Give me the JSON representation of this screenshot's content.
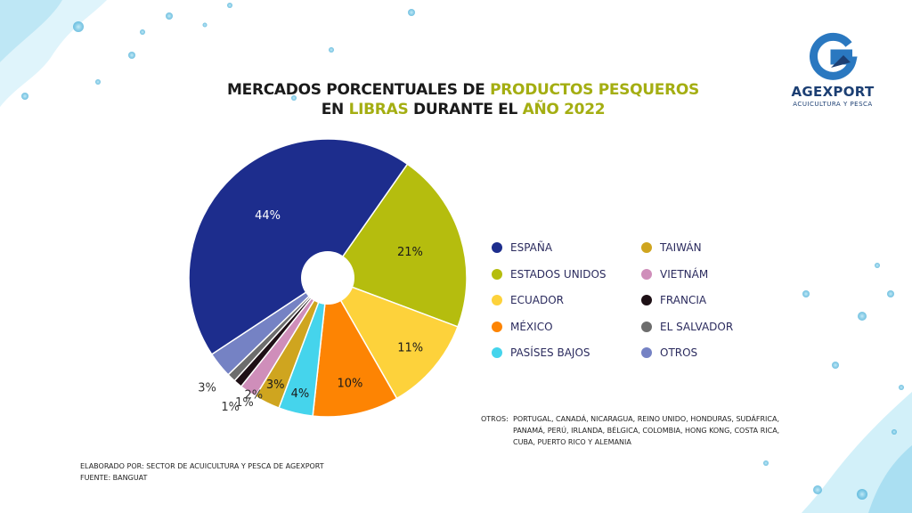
{
  "title": {
    "line1_a": "MERCADOS PORCENTUALES DE ",
    "line1_b": "PRODUCTOS PESQUEROS",
    "line2_a": "EN ",
    "line2_b": "LIBRAS",
    "line2_c": " DURANTE EL ",
    "line2_d": "AÑO 2022"
  },
  "logo": {
    "name": "AGEXPORT",
    "tagline": "ACUICULTURA Y PESCA",
    "color": "#2a78c0"
  },
  "chart_data": {
    "type": "pie",
    "title": "MERCADOS PORCENTUALES DE PRODUCTOS PESQUEROS EN LIBRAS DURANTE EL AÑO 2022",
    "donut_hole": true,
    "slices": [
      {
        "label": "ESTADOS UNIDOS",
        "value": 21,
        "display": "21%",
        "color": "#b5bd0e"
      },
      {
        "label": "ECUADOR",
        "value": 11,
        "display": "11%",
        "color": "#fdd23b"
      },
      {
        "label": "MÉXICO",
        "value": 10,
        "display": "10%",
        "color": "#fd8403"
      },
      {
        "label": "PASÍSES BAJOS",
        "value": 4,
        "display": "4%",
        "color": "#45d4ec"
      },
      {
        "label": "TAIWÁN",
        "value": 3,
        "display": "3%",
        "color": "#cfa51f"
      },
      {
        "label": "VIETNÁM",
        "value": 2,
        "display": "2%",
        "color": "#cf8eba"
      },
      {
        "label": "FRANCIA",
        "value": 1,
        "display": "1%",
        "color": "#1e1016"
      },
      {
        "label": "EL SALVADOR",
        "value": 1,
        "display": "1%",
        "color": "#6d6d6d"
      },
      {
        "label": "OTROS",
        "value": 3,
        "display": "3%",
        "color": "#7582c4"
      },
      {
        "label": "ESPAÑA",
        "value": 44,
        "display": "44%",
        "color": "#1d2d8d"
      }
    ],
    "legend_left": [
      "ESPAÑA",
      "ESTADOS UNIDOS",
      "ECUADOR",
      "MÉXICO",
      "PASÍSES BAJOS"
    ],
    "legend_right": [
      "TAIWÁN",
      "VIETNÁM",
      "FRANCIA",
      "EL SALVADOR",
      "OTROS"
    ]
  },
  "otros_note": {
    "label": "OTROS:",
    "text": "PORTUGAL, CANADÁ, NICARAGUA, REINO UNIDO, HONDURAS, SUDÁFRICA, PANAMÁ, PERÚ, IRLANDA, BÉLGICA, COLOMBIA, HONG KONG, COSTA RICA, CUBA, PUERTO RICO Y ALEMANIA"
  },
  "credits": {
    "line1": "ELABORADO POR: SECTOR DE ACUICULTURA Y PESCA DE AGEXPORT",
    "line2": "FUENTE:  BANGUAT"
  }
}
